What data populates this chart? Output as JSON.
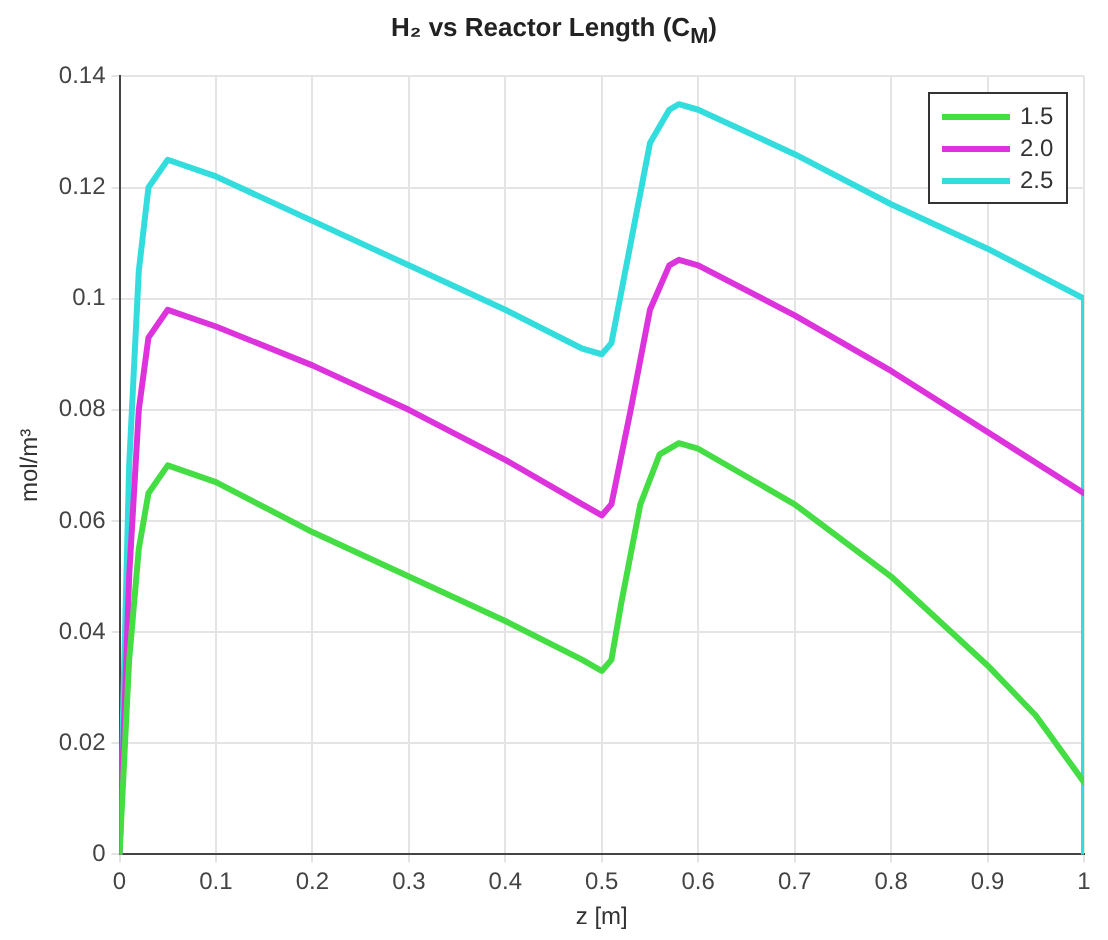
{
  "chart_data": {
    "type": "line",
    "title": "H₂ vs Reactor Length (C$_{M}$)",
    "xlabel": "z [m]",
    "ylabel": "mol/m³",
    "xlim": [
      0,
      1
    ],
    "xticks": [
      0,
      0.1,
      0.2,
      0.3,
      0.4,
      0.5,
      0.6,
      0.7,
      0.8,
      0.9,
      1
    ],
    "ylim": [
      0,
      0.14
    ],
    "yticks": [
      0,
      0.02,
      0.04,
      0.06,
      0.08,
      0.1,
      0.12,
      0.14
    ],
    "grid": true,
    "legend": "top right",
    "marker": "none",
    "line_style": "solid",
    "series": [
      {
        "name": "1.5",
        "color": "#44dd44",
        "x": [
          0,
          0.01,
          0.02,
          0.03,
          0.05,
          0.1,
          0.2,
          0.3,
          0.4,
          0.48,
          0.5,
          0.51,
          0.52,
          0.54,
          0.56,
          0.58,
          0.6,
          0.7,
          0.8,
          0.9,
          0.95,
          1
        ],
        "values": [
          0,
          0.035,
          0.055,
          0.065,
          0.07,
          0.067,
          0.058,
          0.05,
          0.042,
          0.035,
          0.033,
          0.035,
          0.045,
          0.063,
          0.072,
          0.074,
          0.073,
          0.063,
          0.05,
          0.034,
          0.025,
          0.013
        ]
      },
      {
        "name": "2.0",
        "color": "#dd33dd",
        "x": [
          0,
          0.01,
          0.02,
          0.03,
          0.05,
          0.1,
          0.2,
          0.3,
          0.4,
          0.48,
          0.5,
          0.51,
          0.53,
          0.55,
          0.57,
          0.58,
          0.6,
          0.7,
          0.8,
          0.9,
          1
        ],
        "values": [
          0,
          0.05,
          0.08,
          0.093,
          0.098,
          0.095,
          0.088,
          0.08,
          0.071,
          0.063,
          0.061,
          0.063,
          0.08,
          0.098,
          0.106,
          0.107,
          0.106,
          0.097,
          0.087,
          0.076,
          0.065
        ]
      },
      {
        "name": "2.5",
        "color": "#33dddd",
        "x": [
          0,
          0.01,
          0.02,
          0.03,
          0.05,
          0.1,
          0.2,
          0.3,
          0.4,
          0.48,
          0.5,
          0.51,
          0.53,
          0.55,
          0.57,
          0.58,
          0.6,
          0.7,
          0.8,
          0.9,
          1,
          1
        ],
        "values": [
          0,
          0.07,
          0.105,
          0.12,
          0.125,
          0.122,
          0.114,
          0.106,
          0.098,
          0.091,
          0.09,
          0.092,
          0.11,
          0.128,
          0.134,
          0.135,
          0.134,
          0.126,
          0.117,
          0.109,
          0.1,
          0
        ]
      }
    ]
  }
}
